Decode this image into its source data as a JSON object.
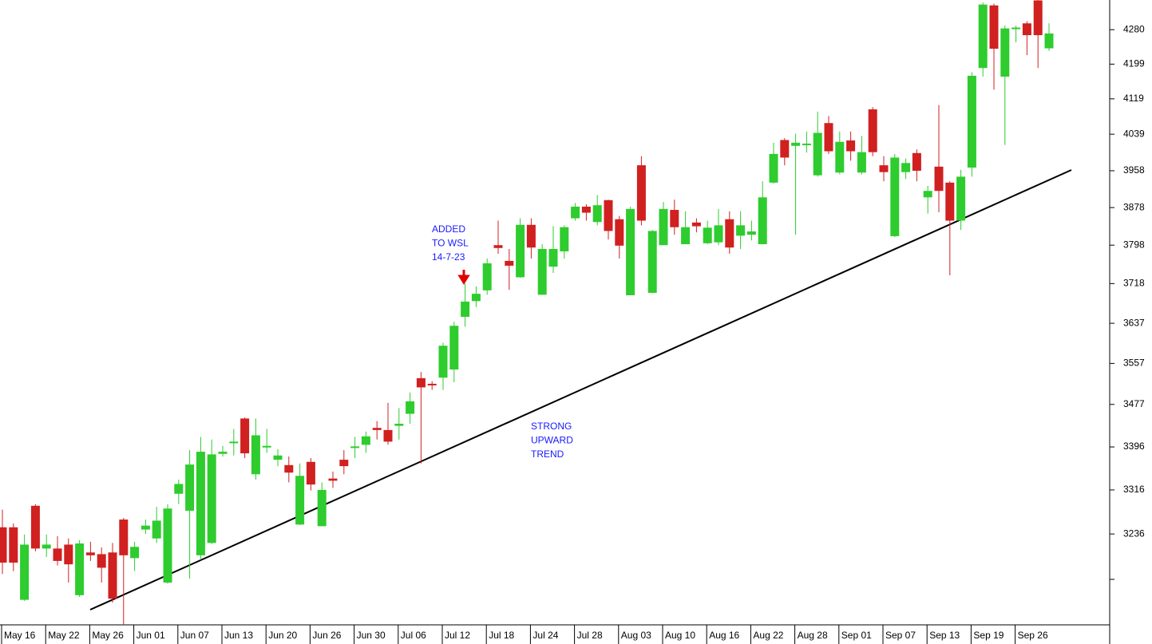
{
  "chart_data": {
    "type": "candlestick",
    "log_scale": true,
    "up_color": "#2ecc2e",
    "down_color": "#d02020",
    "ylim": [
      3077,
      4351
    ],
    "yticks": [
      3236,
      3316,
      3396,
      3477,
      3557,
      3637,
      3718,
      3798,
      3878,
      3958,
      4039,
      4119,
      4199,
      4280
    ],
    "categories": [
      "May 16",
      null,
      null,
      null,
      "May 22",
      null,
      null,
      null,
      "May 26",
      null,
      null,
      null,
      "Jun 01",
      null,
      null,
      null,
      "Jun 07",
      null,
      null,
      null,
      "Jun 13",
      null,
      null,
      null,
      "Jun 20",
      null,
      null,
      null,
      "Jun 26",
      null,
      null,
      null,
      "Jun 30",
      null,
      null,
      null,
      "Jul 06",
      null,
      null,
      null,
      "Jul 12",
      null,
      null,
      null,
      "Jul 18",
      null,
      null,
      null,
      "Jul 24",
      null,
      null,
      null,
      "Jul 28",
      null,
      null,
      null,
      "Aug 03",
      null,
      null,
      null,
      "Aug 10",
      null,
      null,
      null,
      "Aug 16",
      null,
      null,
      null,
      "Aug 22",
      null,
      null,
      null,
      "Aug 28",
      null,
      null,
      null,
      "Sep 01",
      null,
      null,
      null,
      "Sep 07",
      null,
      null,
      null,
      "Sep 13",
      null,
      null,
      null,
      "Sep 19",
      null,
      null,
      null,
      "Sep 26",
      null,
      null,
      null
    ],
    "open": [
      3248,
      3248,
      3120,
      3287,
      3210,
      3210,
      3217,
      3128,
      3203,
      3200,
      3203,
      3262,
      3193,
      3244,
      3228,
      3150,
      3309,
      3278,
      3198,
      3220,
      3383,
      3403,
      3450,
      3345,
      3396,
      3372,
      3362,
      3253,
      3368,
      3250,
      3337,
      3372,
      3394,
      3400,
      3432,
      3428,
      3436,
      3459,
      3528,
      3517,
      3529,
      3545,
      3650,
      3682,
      3704,
      3798,
      3765,
      3731,
      3841,
      3695,
      3753,
      3785,
      3855,
      3880,
      3847,
      3894,
      3853,
      3694,
      3970,
      3699,
      3798,
      3873,
      3800,
      3846,
      3802,
      3804,
      3853,
      3818,
      3820,
      3800,
      3932,
      4026,
      4013,
      4016,
      3948,
      4064,
      3954,
      4025,
      3954,
      4095,
      3970,
      3817,
      3955,
      3997,
      3900,
      3967,
      3932,
      3850,
      3965,
      4190,
      4338,
      4170,
      4282,
      4295,
      4350,
      4236
    ],
    "high": [
      3280,
      3255,
      3235,
      3290,
      3235,
      3232,
      3228,
      3225,
      3222,
      3212,
      3220,
      3265,
      3222,
      3262,
      3285,
      3290,
      3335,
      3390,
      3415,
      3410,
      3398,
      3430,
      3452,
      3450,
      3430,
      3392,
      3378,
      3365,
      3375,
      3330,
      3350,
      3390,
      3415,
      3425,
      3445,
      3480,
      3470,
      3500,
      3540,
      3522,
      3598,
      3640,
      3718,
      3712,
      3770,
      3850,
      3790,
      3855,
      3855,
      3800,
      3838,
      3840,
      3888,
      3885,
      3905,
      3895,
      3860,
      3880,
      3990,
      3830,
      3890,
      3895,
      3870,
      3855,
      3850,
      3875,
      3870,
      3870,
      3850,
      3935,
      4020,
      4030,
      4040,
      4045,
      4090,
      4080,
      4045,
      4045,
      4035,
      4100,
      3990,
      3995,
      3985,
      4005,
      3925,
      4105,
      3935,
      3960,
      4180,
      4345,
      4342,
      4290,
      4290,
      4300,
      4351,
      4295
    ],
    "low": [
      3165,
      3170,
      3118,
      3205,
      3195,
      3180,
      3150,
      3125,
      3188,
      3150,
      3115,
      3077,
      3170,
      3236,
      3220,
      3148,
      3290,
      3157,
      3190,
      3218,
      3378,
      3380,
      3375,
      3335,
      3385,
      3360,
      3330,
      3252,
      3315,
      3250,
      3320,
      3345,
      3375,
      3385,
      3410,
      3400,
      3410,
      3440,
      3365,
      3505,
      3505,
      3520,
      3630,
      3670,
      3695,
      3780,
      3705,
      3730,
      3770,
      3695,
      3740,
      3770,
      3850,
      3850,
      3840,
      3810,
      3770,
      3694,
      3840,
      3698,
      3798,
      3820,
      3800,
      3825,
      3800,
      3798,
      3780,
      3790,
      3808,
      3800,
      3930,
      3970,
      3820,
      3998,
      3945,
      3995,
      3950,
      3980,
      3950,
      3990,
      3935,
      3815,
      3940,
      3935,
      3865,
      3868,
      3735,
      3830,
      3945,
      4170,
      4140,
      4015,
      4250,
      4220,
      4190,
      4230
    ],
    "close": [
      3185,
      3185,
      3217,
      3210,
      3217,
      3188,
      3182,
      3219,
      3198,
      3176,
      3122,
      3198,
      3213,
      3251,
      3260,
      3282,
      3327,
      3363,
      3387,
      3382,
      3387,
      3406,
      3384,
      3418,
      3398,
      3380,
      3348,
      3342,
      3326,
      3316,
      3333,
      3360,
      3397,
      3416,
      3428,
      3406,
      3440,
      3483,
      3510,
      3514,
      3592,
      3632,
      3681,
      3697,
      3760,
      3792,
      3755,
      3841,
      3793,
      3790,
      3790,
      3836,
      3880,
      3867,
      3883,
      3828,
      3797,
      3875,
      3850,
      3828,
      3875,
      3836,
      3836,
      3838,
      3835,
      3840,
      3793,
      3840,
      3827,
      3900,
      3995,
      3987,
      4020,
      4018,
      4042,
      4001,
      4022,
      4001,
      3999,
      3999,
      3955,
      3987,
      3975,
      3958,
      3914,
      3914,
      3850,
      3945,
      4172,
      4340,
      4235,
      4283,
      4285,
      4267,
      4267,
      4271
    ],
    "annotations": [
      [
        "ADDED",
        "TO WSL",
        "14-7-23"
      ],
      [
        "STRONG",
        "UPWARD",
        "TREND"
      ]
    ]
  }
}
